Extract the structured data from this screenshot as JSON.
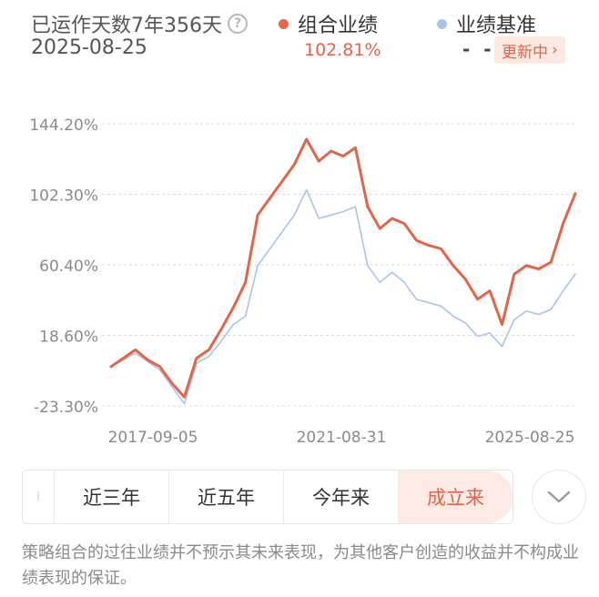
{
  "header": {
    "days_label": "已运作天数7年356天",
    "date": "2025-08-25",
    "help_icon": "question-circle-icon",
    "legend": [
      {
        "label": "组合业绩",
        "value": "102.81%",
        "color": "#e2654a"
      },
      {
        "label": "业绩基准",
        "value": "- -",
        "color": "#a8c4ea"
      }
    ],
    "updating_label": "更新中",
    "updating_icon": "chevron-right-icon"
  },
  "chart_data": {
    "type": "line",
    "y_ticks": [
      "144.20%",
      "102.30%",
      "60.40%",
      "18.60%",
      "-23.30%"
    ],
    "ylim": [
      -23.3,
      144.2
    ],
    "x_ticks": [
      "2017-09-05",
      "2021-08-31",
      "2025-08-25"
    ],
    "grid": true,
    "x": [
      "2017-09-05",
      "2017-12",
      "2018-03",
      "2018-06",
      "2018-09",
      "2018-12",
      "2019-02",
      "2019-04",
      "2019-07",
      "2019-10",
      "2020-01",
      "2020-03",
      "2020-06",
      "2020-08",
      "2020-10",
      "2021-01",
      "2021-02",
      "2021-05",
      "2021-08-31",
      "2021-12",
      "2022-03",
      "2022-04",
      "2022-07",
      "2022-10",
      "2022-12",
      "2023-03",
      "2023-06",
      "2023-09",
      "2023-12",
      "2024-02",
      "2024-05",
      "2024-07",
      "2024-09",
      "2024-10",
      "2024-12",
      "2025-03",
      "2025-05",
      "2025-07",
      "2025-08-25"
    ],
    "series": [
      {
        "name": "组合业绩",
        "color": "#e2654a",
        "values": [
          0,
          5,
          10,
          4,
          0,
          -10,
          -18,
          5,
          10,
          22,
          35,
          50,
          90,
          100,
          110,
          120,
          135,
          122,
          128,
          125,
          130,
          95,
          82,
          88,
          85,
          75,
          72,
          70,
          60,
          52,
          40,
          45,
          25,
          55,
          60,
          58,
          62,
          85,
          102.81
        ]
      },
      {
        "name": "业绩基准",
        "color": "#a8c4ea",
        "values": [
          0,
          4,
          8,
          3,
          -2,
          -12,
          -22,
          2,
          6,
          15,
          25,
          30,
          60,
          70,
          80,
          90,
          105,
          88,
          90,
          92,
          95,
          60,
          50,
          56,
          50,
          40,
          38,
          36,
          30,
          26,
          18,
          20,
          12,
          28,
          33,
          31,
          34,
          45,
          55
        ]
      }
    ]
  },
  "tabs": {
    "grip_icon": "drag-handle-icon",
    "items": [
      "近三年",
      "近五年",
      "今年来",
      "成立来"
    ],
    "active_index": 3,
    "more_icon": "chevron-down-icon"
  },
  "disclaimer": "策略组合的过往业绩并不预示其未来表现，为其他客户创造的收益并不构成业绩表现的保证。"
}
